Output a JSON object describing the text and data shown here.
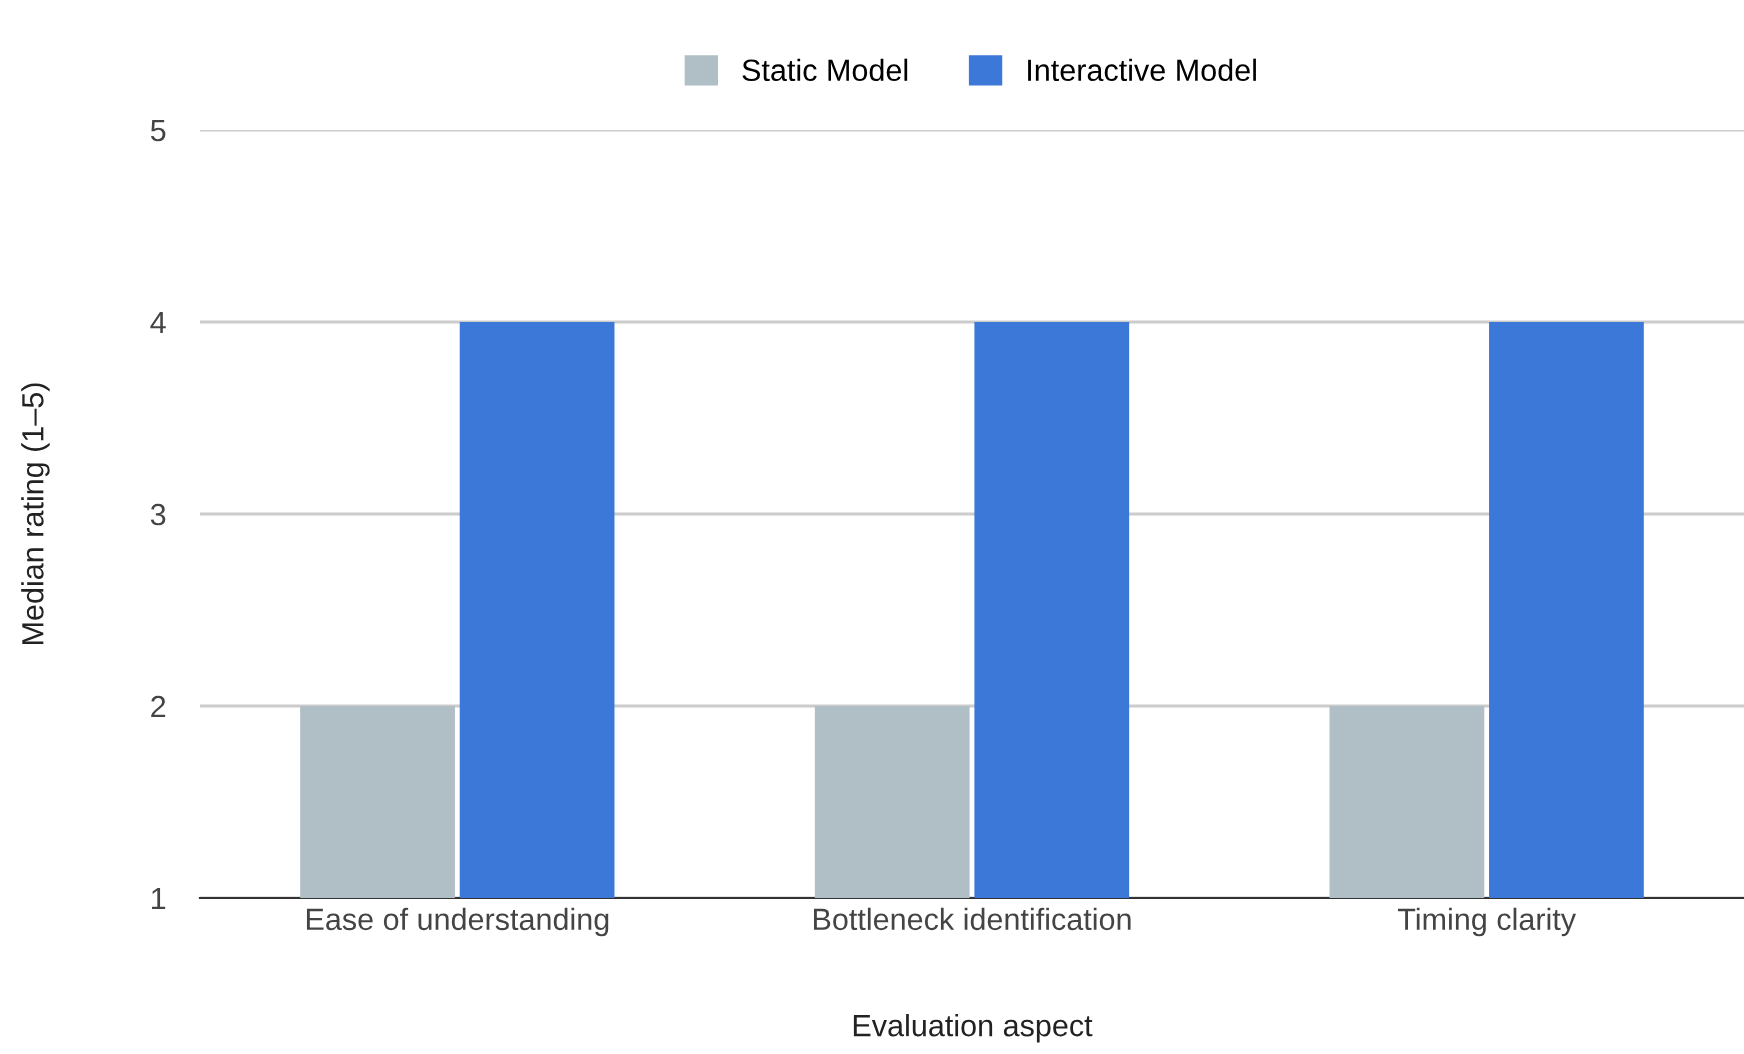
{
  "chart_data": {
    "type": "bar",
    "xlabel": "Evaluation aspect",
    "ylabel": "Median rating (1–5)",
    "categories": [
      "Ease of understanding",
      "Bottleneck identification",
      "Timing clarity"
    ],
    "series": [
      {
        "name": "Static Model",
        "color": "#b0bec5",
        "values": [
          2,
          2,
          2
        ]
      },
      {
        "name": "Interactive Model",
        "color": "#3c78d8",
        "values": [
          4,
          4,
          4
        ]
      }
    ],
    "ylim": [
      1,
      5
    ],
    "yticks": [
      1,
      2,
      3,
      4,
      5
    ],
    "grid": "y",
    "legend": "top"
  }
}
